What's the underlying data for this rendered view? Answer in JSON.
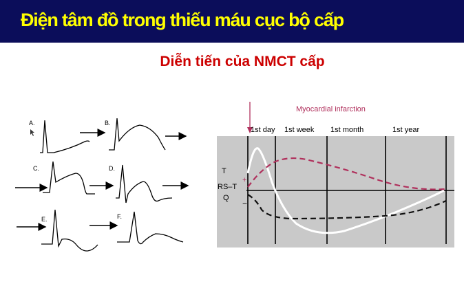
{
  "header": {
    "title": "Điện tâm đồ trong thiếu máu cục bộ cấp",
    "background_color": "#0b0d5a",
    "title_color": "#ffff00"
  },
  "subtitle": {
    "text": "Diễn tiến của NMCT cấp",
    "color": "#cc0000"
  },
  "ecg_stages": {
    "labels": [
      "A.",
      "B.",
      "C.",
      "D.",
      "E.",
      "F."
    ]
  },
  "mi_chart": {
    "title": "Myocardial infarction",
    "time_labels": [
      "1st day",
      "1st week",
      "1st month",
      "1st year"
    ],
    "curve_labels": {
      "t": "T",
      "rst": "RS–T",
      "q": "Q"
    },
    "sign_plus": "+",
    "sign_minus": "−",
    "colors": {
      "panel": "#c9c9c9",
      "t_wave": "#ffffff",
      "st_segment": "#b0305c",
      "q_wave": "#111111"
    }
  }
}
